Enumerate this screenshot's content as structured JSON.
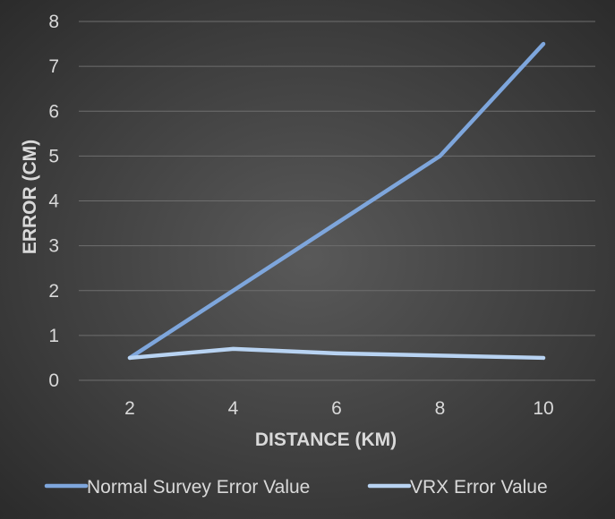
{
  "chart_data": {
    "type": "line",
    "title": "",
    "xlabel": "DISTANCE (KM)",
    "ylabel": "ERROR (CM)",
    "x": [
      2,
      4,
      6,
      8,
      10
    ],
    "x_tick_labels": [
      "2",
      "4",
      "6",
      "8",
      "10"
    ],
    "y_tick_labels": [
      "0",
      "1",
      "2",
      "3",
      "4",
      "5",
      "6",
      "7",
      "8"
    ],
    "ylim": [
      0,
      8
    ],
    "grid": true,
    "legend_position": "bottom",
    "series": [
      {
        "name": "Normal Survey Error Value",
        "values": [
          0.5,
          2.0,
          3.5,
          5.0,
          7.5
        ],
        "color": "#7ea6dc"
      },
      {
        "name": "VRX Error Value",
        "values": [
          0.5,
          0.7,
          0.6,
          0.55,
          0.5
        ],
        "color": "#b8d3f2"
      }
    ]
  }
}
